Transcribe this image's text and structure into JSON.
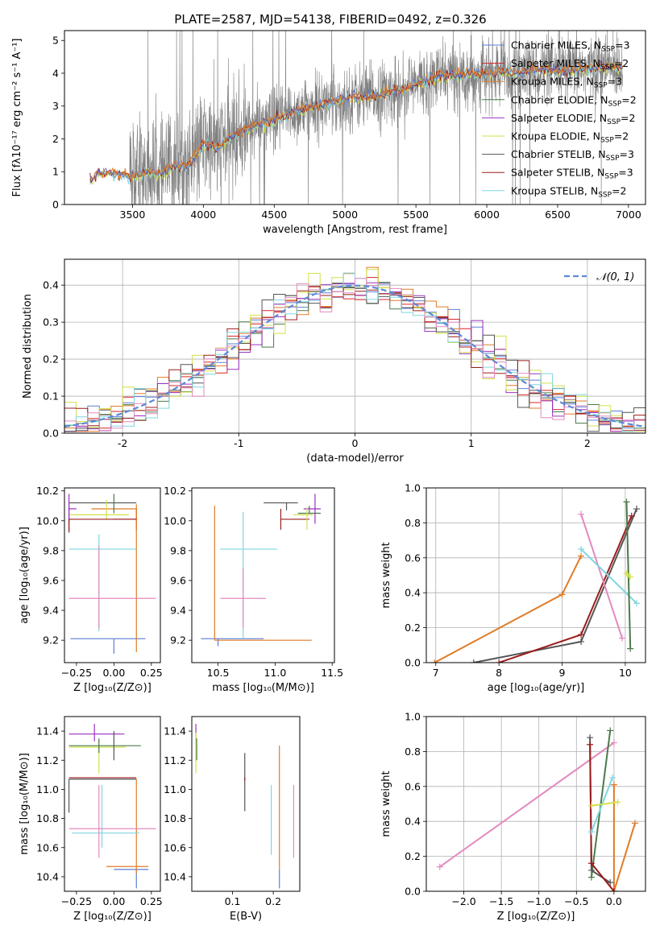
{
  "colors": {
    "chabrier_miles": "#5b7fd6",
    "salpeter_miles": "#d62728",
    "kroupa_miles": "#e07b26",
    "chabrier_elodie": "#4a7a4a",
    "salpeter_elodie": "#9b30c0",
    "kroupa_elodie": "#d2e04a",
    "chabrier_stelib": "#555555",
    "salpeter_stelib": "#9b1c1c",
    "kroupa_stelib": "#7fd6e0",
    "pink": "#e38ac0",
    "gaussian": "#5b8ad6",
    "grid": "#b0b0b0",
    "data": "#808080"
  },
  "chart_data": [
    {
      "id": "spectrum",
      "type": "line",
      "title": "PLATE=2587, MJD=54138, FIBERID=0492, z=0.326",
      "xlabel": "wavelength [Angstrom, rest frame]",
      "ylabel": "Flux [fλ10⁻¹⁷ erg cm⁻² s⁻¹ A⁻¹]",
      "xlim": [
        3020,
        7120
      ],
      "ylim": [
        0,
        5.3
      ],
      "xticks": [
        3500,
        4000,
        4500,
        5000,
        5500,
        6000,
        6500,
        7000
      ],
      "yticks": [
        0,
        1,
        2,
        3,
        4,
        5
      ],
      "grid": false,
      "legend_position": "top-right",
      "legend": [
        {
          "label": "Chabrier MILES, N",
          "sub": "SSP",
          "tail": "=3",
          "color": "chabrier_miles"
        },
        {
          "label": "Salpeter MILES, N",
          "sub": "SSP",
          "tail": "=2",
          "color": "salpeter_miles"
        },
        {
          "label": "Kroupa MILES, N",
          "sub": "SSP",
          "tail": "=3",
          "color": "kroupa_miles"
        },
        {
          "label": "Chabrier ELODIE, N",
          "sub": "SSP",
          "tail": "=2",
          "color": "chabrier_elodie"
        },
        {
          "label": "Salpeter ELODIE, N",
          "sub": "SSP",
          "tail": "=2",
          "color": "salpeter_elodie"
        },
        {
          "label": "Kroupa ELODIE, N",
          "sub": "SSP",
          "tail": "=2",
          "color": "kroupa_elodie"
        },
        {
          "label": "Chabrier STELIB, N",
          "sub": "SSP",
          "tail": "=3",
          "color": "chabrier_stelib"
        },
        {
          "label": "Salpeter STELIB, N",
          "sub": "SSP",
          "tail": "=3",
          "color": "salpeter_stelib"
        },
        {
          "label": "Kroupa STELIB, N",
          "sub": "SSP",
          "tail": "=2",
          "color": "kroupa_stelib"
        }
      ],
      "continuum": {
        "x": [
          3200,
          3260,
          3400,
          3500,
          3600,
          3700,
          3800,
          3900,
          4000,
          4100,
          4200,
          4300,
          4400,
          4500,
          4600,
          4700,
          4800,
          4900,
          5000,
          5100,
          5200,
          5300,
          5400,
          5500,
          5600,
          5700,
          5800,
          5900,
          6000,
          6100,
          6200,
          6300,
          6400,
          6500,
          6600,
          6700,
          6800,
          6900,
          6960
        ],
        "y": [
          0.7,
          0.95,
          0.95,
          0.85,
          1.0,
          0.95,
          1.15,
          1.2,
          1.85,
          1.75,
          2.05,
          2.3,
          2.45,
          2.55,
          2.75,
          2.9,
          3.0,
          3.1,
          3.2,
          3.3,
          3.3,
          3.4,
          3.5,
          3.65,
          3.8,
          3.95,
          3.95,
          4.0,
          3.95,
          4.05,
          4.0,
          4.05,
          4.1,
          4.05,
          4.1,
          4.15,
          4.2,
          4.2,
          4.15
        ]
      }
    },
    {
      "id": "residuals",
      "type": "step",
      "xlabel": "(data-model)/error",
      "ylabel": "Normed distribution",
      "xlim": [
        -2.5,
        2.5
      ],
      "ylim": [
        0,
        0.47
      ],
      "xticks": [
        -2,
        -1,
        0,
        1,
        2
      ],
      "yticks": [
        0.0,
        0.1,
        0.2,
        0.3,
        0.4
      ],
      "grid": true,
      "legend_position": "top-right",
      "legend_label": "𝒩(0, 1)",
      "gaussian": {
        "mean": 0,
        "sigma": 1
      }
    },
    {
      "id": "age_vs_Z",
      "type": "errorbar",
      "xlabel": "Z [log₁₀(Z/Z⊙)]",
      "ylabel": "age  [log₁₀(age/yr)]",
      "xlim": [
        -0.33,
        0.31
      ],
      "ylim": [
        9.05,
        10.22
      ],
      "xticks": [
        -0.25,
        0.0,
        0.25
      ],
      "xticklabels": [
        "−0.25",
        "0.00",
        "0.25"
      ],
      "yticks": [
        9.2,
        9.4,
        9.6,
        9.8,
        10.0,
        10.2
      ],
      "points": [
        {
          "x": 0.0,
          "xerr": [
            0.29,
            0.21
          ],
          "y": 9.21,
          "yerr": [
            0.1,
            0.0
          ],
          "color": "chabrier_miles"
        },
        {
          "x": 0.15,
          "xerr": [
            0.15,
            0.0
          ],
          "y": 10.01,
          "yerr": [
            0.07,
            0.07
          ],
          "color": "salpeter_miles"
        },
        {
          "x": 0.15,
          "xerr": [
            0.0,
            0.0
          ],
          "y": 9.2,
          "yerr": [
            0.08,
            0.88
          ],
          "color": "kroupa_miles"
        },
        {
          "x": 0.15,
          "xerr": [
            0.3,
            0.0
          ],
          "y": 10.08,
          "yerr": [
            0.1,
            0.03
          ],
          "color": "kroupa_miles"
        },
        {
          "x": -0.3,
          "xerr": [
            0.0,
            0.45
          ],
          "y": 10.12,
          "yerr": [
            0.2,
            0.0
          ],
          "color": "chabrier_stelib"
        },
        {
          "x": -0.05,
          "xerr": [
            0.25,
            0.15
          ],
          "y": 10.04,
          "yerr": [
            0.03,
            0.1
          ],
          "color": "kroupa_elodie"
        },
        {
          "x": -0.3,
          "xerr": [
            0.0,
            0.05
          ],
          "y": 10.08,
          "yerr": [
            0.08,
            0.1
          ],
          "color": "salpeter_elodie"
        },
        {
          "x": -0.1,
          "xerr": [
            0.2,
            0.25
          ],
          "y": 9.81,
          "yerr": [
            0.55,
            0.1
          ],
          "color": "kroupa_stelib"
        },
        {
          "x": -0.1,
          "xerr": [
            0.2,
            0.38
          ],
          "y": 9.48,
          "yerr": [
            0.2,
            0.35
          ],
          "color": "pink"
        },
        {
          "x": -0.3,
          "xerr": [
            0.0,
            0.45
          ],
          "y": 10.01,
          "yerr": [
            0.08,
            0.0
          ],
          "color": "salpeter_stelib"
        },
        {
          "x": 0.0,
          "xerr": [
            0.0,
            0.0
          ],
          "y": 10.05,
          "yerr": [
            0.0,
            0.13
          ],
          "color": "chabrier_elodie"
        }
      ]
    },
    {
      "id": "age_vs_mass",
      "type": "errorbar",
      "xlabel": "mass [log₁₀(M/M⊙)]",
      "ylabel": "",
      "xlim": [
        10.27,
        11.52
      ],
      "ylim": [
        9.05,
        10.22
      ],
      "xticks": [
        10.5,
        11.0,
        11.5
      ],
      "xticklabels": [
        "10.5",
        "11.0",
        "11.5"
      ],
      "yticks": [
        9.2,
        9.4,
        9.6,
        9.8,
        10.0,
        10.2
      ],
      "points": [
        {
          "x": 10.5,
          "xerr": [
            0.15,
            0.4
          ],
          "y": 9.21,
          "yerr": [
            0.05,
            0.0
          ],
          "color": "chabrier_miles"
        },
        {
          "x": 10.47,
          "xerr": [
            0.0,
            0.85
          ],
          "y": 9.2,
          "yerr": [
            0.0,
            0.0
          ],
          "color": "kroupa_miles"
        },
        {
          "x": 10.47,
          "xerr": [
            0.0,
            0.0
          ],
          "y": 9.2,
          "yerr": [
            0.0,
            0.9
          ],
          "color": "kroupa_miles"
        },
        {
          "x": 10.72,
          "xerr": [
            0.2,
            0.3
          ],
          "y": 9.81,
          "yerr": [
            0.6,
            0.25
          ],
          "color": "kroupa_stelib"
        },
        {
          "x": 10.72,
          "xerr": [
            0.2,
            0.2
          ],
          "y": 9.48,
          "yerr": [
            0.2,
            0.2
          ],
          "color": "pink"
        },
        {
          "x": 11.05,
          "xerr": [
            0.0,
            0.25
          ],
          "y": 10.01,
          "yerr": [
            0.07,
            0.07
          ],
          "color": "salpeter_stelib"
        },
        {
          "x": 11.1,
          "xerr": [
            0.2,
            0.1
          ],
          "y": 10.12,
          "yerr": [
            0.05,
            0.0
          ],
          "color": "chabrier_stelib"
        },
        {
          "x": 11.3,
          "xerr": [
            0.1,
            0.1
          ],
          "y": 10.05,
          "yerr": [
            0.0,
            0.05
          ],
          "color": "chabrier_elodie"
        },
        {
          "x": 11.35,
          "xerr": [
            0.1,
            0.05
          ],
          "y": 10.08,
          "yerr": [
            0.1,
            0.1
          ],
          "color": "salpeter_elodie"
        },
        {
          "x": 11.28,
          "xerr": [
            0.12,
            0.05
          ],
          "y": 10.04,
          "yerr": [
            0.1,
            0.05
          ],
          "color": "kroupa_elodie"
        }
      ]
    },
    {
      "id": "mass_weight_vs_age",
      "type": "line",
      "xlabel": "age  [log₁₀(age/yr)]",
      "ylabel": "mass weight",
      "xlim": [
        6.85,
        10.32
      ],
      "ylim": [
        0,
        1.0
      ],
      "xticks": [
        7,
        8,
        9,
        10
      ],
      "yticks": [
        0.0,
        0.2,
        0.4,
        0.6,
        0.8,
        1.0
      ],
      "grid": true,
      "series": [
        {
          "color": "kroupa_miles",
          "x": [
            6.98,
            9.0,
            9.3
          ],
          "y": [
            0.0,
            0.39,
            0.61
          ]
        },
        {
          "color": "chabrier_stelib",
          "x": [
            7.6,
            9.3,
            10.18
          ],
          "y": [
            0.0,
            0.12,
            0.88
          ]
        },
        {
          "color": "salpeter_stelib",
          "x": [
            8.0,
            9.3,
            10.1
          ],
          "y": [
            0.0,
            0.16,
            0.84
          ]
        },
        {
          "color": "pink",
          "x": [
            9.3,
            9.95
          ],
          "y": [
            0.85,
            0.14
          ]
        },
        {
          "color": "kroupa_stelib",
          "x": [
            9.3,
            10.18
          ],
          "y": [
            0.65,
            0.34
          ]
        },
        {
          "color": "chabrier_elodie",
          "x": [
            10.02,
            10.08
          ],
          "y": [
            0.92,
            0.08
          ]
        },
        {
          "color": "kroupa_elodie",
          "x": [
            10.02,
            10.08
          ],
          "y": [
            0.51,
            0.49
          ]
        }
      ]
    },
    {
      "id": "mass_vs_Z",
      "type": "errorbar",
      "xlabel": "Z [log₁₀(Z/Z⊙)]",
      "ylabel": "mass [log₁₀(M/M⊙)]",
      "xlim": [
        -0.33,
        0.31
      ],
      "ylim": [
        10.3,
        11.5
      ],
      "xticks": [
        -0.25,
        0.0,
        0.25
      ],
      "xticklabels": [
        "−0.25",
        "0.00",
        "0.25"
      ],
      "yticks": [
        10.4,
        10.6,
        10.8,
        11.0,
        11.2,
        11.4
      ],
      "points": [
        {
          "x": 0.15,
          "xerr": [
            0.15,
            0.08
          ],
          "y": 10.45,
          "yerr": [
            0.13,
            0.0
          ],
          "color": "chabrier_miles"
        },
        {
          "x": 0.15,
          "xerr": [
            0.2,
            0.08
          ],
          "y": 10.47,
          "yerr": [
            0.05,
            0.6
          ],
          "color": "kroupa_miles"
        },
        {
          "x": -0.3,
          "xerr": [
            0.0,
            0.45
          ],
          "y": 11.07,
          "yerr": [
            0.23,
            0.0
          ],
          "color": "chabrier_stelib"
        },
        {
          "x": -0.3,
          "xerr": [
            0.0,
            0.45
          ],
          "y": 11.08,
          "yerr": [
            0.0,
            0.0
          ],
          "color": "salpeter_stelib"
        },
        {
          "x": -0.13,
          "xerr": [
            0.17,
            0.2
          ],
          "y": 11.38,
          "yerr": [
            0.05,
            0.07
          ],
          "color": "salpeter_elodie"
        },
        {
          "x": -0.1,
          "xerr": [
            0.2,
            0.18
          ],
          "y": 11.29,
          "yerr": [
            0.18,
            0.05
          ],
          "color": "kroupa_elodie"
        },
        {
          "x": -0.1,
          "xerr": [
            0.2,
            0.28
          ],
          "y": 11.3,
          "yerr": [
            0.05,
            0.05
          ],
          "color": "chabrier_elodie"
        },
        {
          "x": 0.0,
          "xerr": [
            0.0,
            0.0
          ],
          "y": 11.3,
          "yerr": [
            0.1,
            0.1
          ],
          "color": "chabrier_stelib"
        },
        {
          "x": -0.08,
          "xerr": [
            0.2,
            0.25
          ],
          "y": 10.7,
          "yerr": [
            0.1,
            0.33
          ],
          "color": "kroupa_stelib"
        },
        {
          "x": -0.1,
          "xerr": [
            0.2,
            0.38
          ],
          "y": 10.73,
          "yerr": [
            0.2,
            0.3
          ],
          "color": "pink"
        }
      ]
    },
    {
      "id": "mass_vs_ebv",
      "type": "errorbar",
      "xlabel": "E(B-V)",
      "ylabel": "",
      "xlim": [
        0.0,
        0.265
      ],
      "ylim": [
        10.3,
        11.5
      ],
      "xticks": [
        0.1,
        0.2
      ],
      "xticklabels": [
        "0.1",
        "0.2"
      ],
      "yticks": [
        10.4,
        10.6,
        10.8,
        11.0,
        11.2,
        11.4
      ],
      "points": [
        {
          "x": 0.01,
          "xerr": [
            0.0,
            0.0
          ],
          "y": 11.38,
          "yerr": [
            0.05,
            0.07
          ],
          "color": "salpeter_elodie"
        },
        {
          "x": 0.01,
          "xerr": [
            0.0,
            0.0
          ],
          "y": 11.25,
          "yerr": [
            0.14,
            0.14
          ],
          "color": "kroupa_elodie"
        },
        {
          "x": 0.012,
          "xerr": [
            0.0,
            0.0
          ],
          "y": 11.3,
          "yerr": [
            0.1,
            0.05
          ],
          "color": "chabrier_elodie"
        },
        {
          "x": 0.13,
          "xerr": [
            0.0,
            0.0
          ],
          "y": 11.05,
          "yerr": [
            0.2,
            0.2
          ],
          "color": "chabrier_stelib"
        },
        {
          "x": 0.13,
          "xerr": [
            0.0,
            0.0
          ],
          "y": 11.08,
          "yerr": [
            0.02,
            0.0
          ],
          "color": "salpeter_stelib"
        },
        {
          "x": 0.195,
          "xerr": [
            0.0,
            0.0
          ],
          "y": 10.73,
          "yerr": [
            0.18,
            0.3
          ],
          "color": "kroupa_stelib"
        },
        {
          "x": 0.215,
          "xerr": [
            0.0,
            0.0
          ],
          "y": 10.85,
          "yerr": [
            0.4,
            0.45
          ],
          "color": "kroupa_miles"
        },
        {
          "x": 0.215,
          "xerr": [
            0.0,
            0.0
          ],
          "y": 10.45,
          "yerr": [
            0.13,
            0.0
          ],
          "color": "chabrier_miles"
        },
        {
          "x": 0.25,
          "xerr": [
            0.0,
            0.0
          ],
          "y": 10.78,
          "yerr": [
            0.25,
            0.25
          ],
          "color": "pink"
        }
      ]
    },
    {
      "id": "mass_weight_vs_Z",
      "type": "line",
      "xlabel": "Z [log₁₀(Z/Z⊙)]",
      "ylabel": "mass weight",
      "xlim": [
        -2.5,
        0.42
      ],
      "ylim": [
        0,
        1.0
      ],
      "xticks": [
        -2.0,
        -1.5,
        -1.0,
        -0.5,
        0.0
      ],
      "xticklabels": [
        "−2.0",
        "−1.5",
        "−1.0",
        "−0.5",
        "0.0"
      ],
      "yticks": [
        0.0,
        0.2,
        0.4,
        0.6,
        0.8,
        1.0
      ],
      "grid": true,
      "series": [
        {
          "color": "pink",
          "x": [
            -2.32,
            0.0
          ],
          "y": [
            0.14,
            0.85
          ]
        },
        {
          "color": "kroupa_miles",
          "x": [
            0.0,
            0.0,
            0.28
          ],
          "y": [
            0.61,
            0.0,
            0.39
          ]
        },
        {
          "color": "chabrier_elodie",
          "x": [
            -0.3,
            -0.05
          ],
          "y": [
            0.08,
            0.92
          ]
        },
        {
          "color": "chabrier_stelib",
          "x": [
            -0.32,
            -0.3,
            -0.05
          ],
          "y": [
            0.88,
            0.12,
            0.05
          ]
        },
        {
          "color": "salpeter_stelib",
          "x": [
            -0.32,
            -0.3,
            0.0
          ],
          "y": [
            0.84,
            0.16,
            0.0
          ]
        },
        {
          "color": "kroupa_stelib",
          "x": [
            -0.3,
            -0.02
          ],
          "y": [
            0.34,
            0.65
          ]
        },
        {
          "color": "kroupa_elodie",
          "x": [
            -0.3,
            0.05
          ],
          "y": [
            0.49,
            0.51
          ]
        }
      ]
    }
  ]
}
